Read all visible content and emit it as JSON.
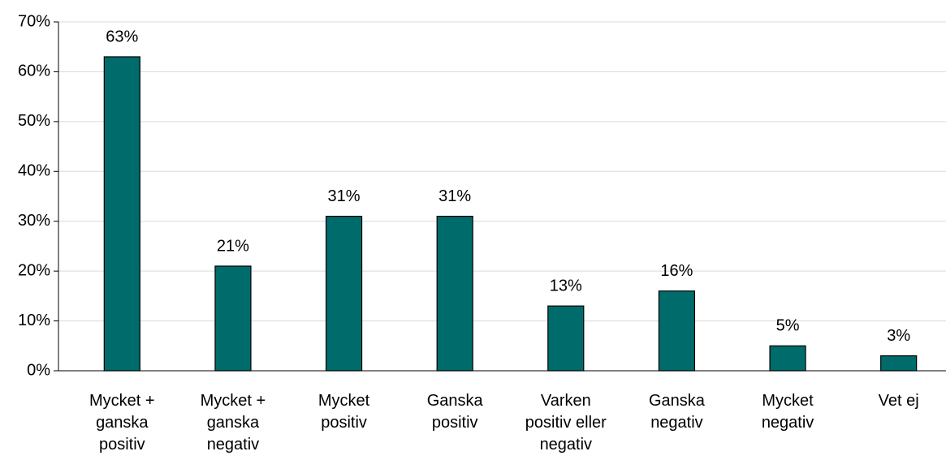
{
  "chart_data": {
    "type": "bar",
    "categories": [
      "Mycket + ganska positiv",
      "Mycket + ganska negativ",
      "Mycket positiv",
      "Ganska positiv",
      "Varken positiv eller negativ",
      "Ganska negativ",
      "Mycket negativ",
      "Vet ej"
    ],
    "values": [
      63,
      21,
      31,
      31,
      13,
      16,
      5,
      3
    ],
    "value_labels": [
      "63%",
      "21%",
      "31%",
      "31%",
      "13%",
      "16%",
      "5%",
      "3%"
    ],
    "color": "#006b6b",
    "ylim": [
      0,
      70
    ],
    "yticks": [
      {
        "value": 0,
        "label": "0%"
      },
      {
        "value": 10,
        "label": "10%"
      },
      {
        "value": 20,
        "label": "20%"
      },
      {
        "value": 30,
        "label": "30%"
      },
      {
        "value": 40,
        "label": "40%"
      },
      {
        "value": 50,
        "label": "50%"
      },
      {
        "value": 60,
        "label": "60%"
      },
      {
        "value": 70,
        "label": "70%"
      }
    ],
    "grid": true
  }
}
